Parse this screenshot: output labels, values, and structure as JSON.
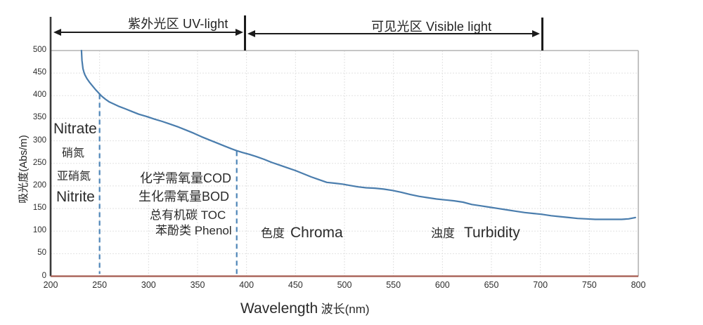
{
  "chart_data": {
    "type": "line",
    "title": "",
    "xlabel": "Wavelength 波长(nm)",
    "xlabel_en": "Wavelength",
    "xlabel_zh": "波长(nm)",
    "ylabel": "吸光度(Abs/m)",
    "xlim": [
      200,
      800
    ],
    "ylim": [
      0,
      500
    ],
    "x_ticks": [
      200,
      250,
      300,
      350,
      400,
      450,
      500,
      550,
      600,
      650,
      700,
      750,
      800
    ],
    "y_ticks": [
      0,
      50,
      100,
      150,
      200,
      250,
      300,
      350,
      400,
      450,
      500
    ],
    "grid": true,
    "legend": "none",
    "regions": [
      {
        "label": "紫外光区 UV-light",
        "from_nm": 200,
        "to_nm": 400
      },
      {
        "label": "可见光区 Visible light",
        "from_nm": 400,
        "to_nm": 700
      }
    ],
    "guides": [
      {
        "x_nm": 250,
        "top_abs": 403,
        "bottom_abs": 5
      },
      {
        "x_nm": 390,
        "top_abs": 277,
        "bottom_abs": 5
      }
    ],
    "series": [
      {
        "name": "absorbance-spectrum",
        "color": "#4a7dad",
        "points": [
          [
            231.5,
            500
          ],
          [
            232,
            478
          ],
          [
            233,
            460
          ],
          [
            234,
            452
          ],
          [
            235,
            446
          ],
          [
            237,
            438
          ],
          [
            240,
            429
          ],
          [
            243,
            421
          ],
          [
            246,
            413
          ],
          [
            249,
            406
          ],
          [
            252,
            399
          ],
          [
            256,
            392
          ],
          [
            260,
            386
          ],
          [
            265,
            381
          ],
          [
            270,
            376
          ],
          [
            276,
            371
          ],
          [
            283,
            365
          ],
          [
            290,
            359
          ],
          [
            298,
            354
          ],
          [
            306,
            348
          ],
          [
            314,
            343
          ],
          [
            322,
            337
          ],
          [
            330,
            331
          ],
          [
            338,
            324
          ],
          [
            346,
            317
          ],
          [
            354,
            309
          ],
          [
            362,
            302
          ],
          [
            370,
            295
          ],
          [
            378,
            288
          ],
          [
            385,
            282
          ],
          [
            390,
            278
          ],
          [
            396,
            274
          ],
          [
            403,
            270
          ],
          [
            410,
            265
          ],
          [
            418,
            259
          ],
          [
            426,
            252
          ],
          [
            434,
            246
          ],
          [
            442,
            240
          ],
          [
            450,
            234
          ],
          [
            458,
            227
          ],
          [
            466,
            220
          ],
          [
            474,
            214
          ],
          [
            482,
            208
          ],
          [
            490,
            206
          ],
          [
            498,
            204
          ],
          [
            506,
            201
          ],
          [
            514,
            198
          ],
          [
            522,
            196
          ],
          [
            531,
            195
          ],
          [
            540,
            193
          ],
          [
            549,
            190
          ],
          [
            558,
            186
          ],
          [
            567,
            181
          ],
          [
            576,
            177
          ],
          [
            585,
            174
          ],
          [
            594,
            171
          ],
          [
            603,
            169
          ],
          [
            612,
            167
          ],
          [
            621,
            164
          ],
          [
            630,
            159
          ],
          [
            639,
            156
          ],
          [
            648,
            153
          ],
          [
            657,
            150
          ],
          [
            666,
            147
          ],
          [
            675,
            144
          ],
          [
            684,
            141
          ],
          [
            693,
            139
          ],
          [
            702,
            137
          ],
          [
            711,
            134
          ],
          [
            720,
            132
          ],
          [
            729,
            130
          ],
          [
            738,
            128
          ],
          [
            747,
            127
          ],
          [
            756,
            126
          ],
          [
            765,
            126
          ],
          [
            774,
            126
          ],
          [
            783,
            126
          ],
          [
            790,
            127
          ],
          [
            797,
            130
          ]
        ]
      }
    ]
  },
  "annotations": {
    "nitrogen": [
      "Nitrate",
      "硝氮",
      "亚硝氮",
      "Nitrite"
    ],
    "uv_params": [
      "化学需氧量COD",
      "生化需氧量BOD",
      "总有机碳 TOC",
      "苯酚类 Phenol"
    ],
    "chroma": {
      "zh": "色度",
      "en": "Chroma"
    },
    "turbidity": {
      "zh": "浊度",
      "en": "Turbidity"
    }
  },
  "colors": {
    "curve": "#4a7dad",
    "guide": "#4f86b8",
    "x_axis": "#a3594e",
    "border": "#b3b3b3",
    "grid": "#e2e2e2",
    "text": "#2b2b2b"
  }
}
